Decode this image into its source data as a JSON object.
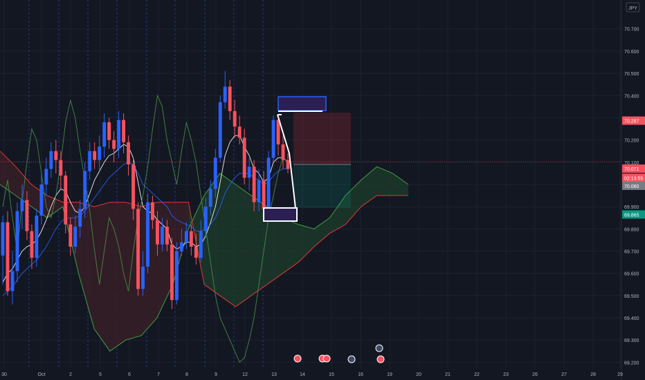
{
  "currency": "JPY",
  "colors": {
    "background": "#131722",
    "up": "#2962ff",
    "down": "#f7525f",
    "grid": "#1e2230",
    "axis_text": "#b2b5be",
    "cloud_bull": "#1d3b2c",
    "cloud_bear": "#3a1f27"
  },
  "chart_data": {
    "type": "candlestick",
    "title": "",
    "xlabel": "",
    "ylabel": "",
    "ylim": [
      69.17,
      70.78
    ],
    "y_ticks": [
      "70.700",
      "70.600",
      "70.500",
      "70.400",
      "70.300",
      "70.200",
      "70.100",
      "70.000",
      "69.900",
      "69.800",
      "69.700",
      "69.600",
      "69.500",
      "69.400",
      "69.300",
      "69.200"
    ],
    "x_ticks": [
      "30",
      "Oct",
      "2",
      "5",
      "6",
      "7",
      "8",
      "9",
      "12",
      "13",
      "14",
      "15",
      "16",
      "19",
      "20",
      "21",
      "22",
      "23",
      "26",
      "27",
      "28",
      "29"
    ],
    "price_labels": [
      {
        "text": "70.287",
        "price": 70.287,
        "color": "#f7525f"
      },
      {
        "text": "70.071",
        "price": 70.071,
        "color": "#f7525f"
      },
      {
        "text": "02:13:55",
        "price": 70.03,
        "color": "#f7525f"
      },
      {
        "text": "70.060",
        "price": 69.994,
        "color": "#787b86"
      },
      {
        "text": "69.865",
        "price": 69.865,
        "color": "#089981"
      }
    ],
    "candles": [
      [
        69.68,
        69.83,
        69.55,
        69.86
      ],
      [
        69.83,
        69.52,
        69.5,
        69.88
      ],
      [
        69.52,
        69.61,
        69.46,
        69.7
      ],
      [
        69.61,
        69.88,
        69.56,
        69.92
      ],
      [
        69.88,
        69.93,
        69.8,
        70.0
      ],
      [
        69.93,
        69.79,
        69.75,
        69.97
      ],
      [
        69.79,
        69.67,
        69.62,
        69.82
      ],
      [
        69.67,
        69.86,
        69.63,
        69.89
      ],
      [
        69.86,
        70.0,
        69.82,
        70.05
      ],
      [
        70.0,
        70.07,
        69.95,
        70.12
      ],
      [
        70.07,
        70.15,
        70.03,
        70.19
      ],
      [
        70.15,
        70.11,
        70.05,
        70.2
      ],
      [
        70.11,
        70.04,
        69.98,
        70.15
      ],
      [
        70.04,
        69.82,
        69.78,
        70.06
      ],
      [
        69.82,
        69.72,
        69.68,
        69.85
      ],
      [
        69.72,
        69.81,
        69.69,
        69.86
      ],
      [
        69.81,
        69.89,
        69.76,
        69.93
      ],
      [
        69.89,
        70.06,
        69.85,
        70.1
      ],
      [
        70.06,
        70.15,
        70.02,
        70.19
      ],
      [
        70.15,
        70.11,
        70.07,
        70.19
      ],
      [
        70.11,
        70.17,
        70.06,
        70.22
      ],
      [
        70.17,
        70.28,
        70.12,
        70.32
      ],
      [
        70.28,
        70.2,
        70.16,
        70.3
      ],
      [
        70.2,
        70.16,
        70.1,
        70.24
      ],
      [
        70.16,
        70.29,
        70.12,
        70.33
      ],
      [
        70.29,
        70.19,
        70.14,
        70.32
      ],
      [
        70.19,
        70.09,
        70.04,
        70.22
      ],
      [
        70.09,
        69.89,
        69.84,
        70.12
      ],
      [
        69.89,
        69.53,
        69.5,
        69.92
      ],
      [
        69.53,
        69.63,
        69.5,
        69.7
      ],
      [
        69.63,
        69.92,
        69.6,
        69.96
      ],
      [
        69.92,
        69.84,
        69.8,
        69.95
      ],
      [
        69.84,
        69.73,
        69.68,
        69.88
      ],
      [
        69.73,
        69.81,
        69.7,
        69.85
      ],
      [
        69.81,
        69.73,
        69.7,
        69.84
      ],
      [
        69.73,
        69.48,
        69.44,
        69.76
      ],
      [
        69.48,
        69.7,
        69.46,
        69.74
      ],
      [
        69.7,
        69.74,
        69.68,
        69.8
      ],
      [
        69.74,
        69.79,
        69.71,
        69.83
      ],
      [
        69.79,
        69.72,
        69.68,
        69.82
      ],
      [
        69.72,
        69.67,
        69.64,
        69.78
      ],
      [
        69.67,
        69.79,
        69.65,
        69.84
      ],
      [
        69.79,
        69.9,
        69.76,
        69.94
      ],
      [
        69.9,
        69.98,
        69.86,
        70.02
      ],
      [
        69.98,
        70.12,
        69.94,
        70.16
      ],
      [
        70.12,
        70.37,
        70.1,
        70.4
      ],
      [
        70.37,
        70.44,
        70.34,
        70.51
      ],
      [
        70.44,
        70.33,
        70.29,
        70.47
      ],
      [
        70.33,
        70.26,
        70.21,
        70.38
      ],
      [
        70.26,
        70.21,
        70.18,
        70.31
      ],
      [
        70.21,
        70.03,
        70.0,
        70.25
      ],
      [
        70.03,
        70.08,
        69.97,
        70.12
      ],
      [
        70.08,
        69.92,
        69.88,
        70.11
      ],
      [
        69.92,
        70.02,
        69.88,
        70.07
      ],
      [
        70.02,
        69.89,
        69.85,
        70.06
      ],
      [
        69.89,
        70.12,
        69.87,
        70.15
      ],
      [
        70.12,
        70.29,
        70.1,
        70.31
      ],
      [
        70.29,
        70.18,
        70.13,
        70.31
      ],
      [
        70.18,
        70.11,
        70.07,
        70.22
      ],
      [
        70.11,
        70.07,
        70.05,
        70.14
      ]
    ],
    "indicators": [
      {
        "kind": "ema_fast",
        "color": "#ffffff",
        "values": [
          69.56,
          69.6,
          69.62,
          69.66,
          69.7,
          69.72,
          69.73,
          69.75,
          69.79,
          69.84,
          69.9,
          69.95,
          69.98,
          69.97,
          69.92,
          69.88,
          69.87,
          69.9,
          69.96,
          70.02,
          70.06,
          70.1,
          70.13,
          70.14,
          70.16,
          70.18,
          70.17,
          70.12,
          70.01,
          69.9,
          69.88,
          69.87,
          69.84,
          69.82,
          69.8,
          69.73,
          69.71,
          69.72,
          69.74,
          69.74,
          69.72,
          69.73,
          69.77,
          69.83,
          69.9,
          70.01,
          70.13,
          70.19,
          70.22,
          70.22,
          70.17,
          70.13,
          70.07,
          70.05,
          70.01,
          70.03,
          70.1,
          70.12,
          70.12,
          70.1
        ]
      },
      {
        "kind": "ema_slow",
        "color": "#2962ff",
        "values": [
          69.5,
          69.52,
          69.54,
          69.57,
          69.6,
          69.62,
          69.64,
          69.66,
          69.69,
          69.72,
          69.76,
          69.8,
          69.83,
          69.85,
          69.85,
          69.85,
          69.86,
          69.88,
          69.91,
          69.94,
          69.97,
          70.0,
          70.03,
          70.05,
          70.07,
          70.09,
          70.1,
          70.09,
          70.05,
          70.0,
          69.98,
          69.96,
          69.94,
          69.92,
          69.9,
          69.86,
          69.84,
          69.83,
          69.82,
          69.81,
          69.79,
          69.79,
          69.8,
          69.82,
          69.85,
          69.9,
          69.96,
          70.0,
          70.03,
          70.05,
          70.05,
          70.05,
          70.03,
          70.02,
          70.0,
          70.01,
          70.04,
          70.06,
          70.07,
          70.07
        ]
      },
      {
        "kind": "lagging_span",
        "color": "#4a8f4a",
        "values": [
          69.9,
          70.02,
          69.85,
          69.7,
          69.92,
          70.1,
          70.25,
          70.2,
          70.05,
          69.9,
          69.85,
          69.95,
          70.1,
          70.28,
          70.38,
          70.3,
          70.15,
          70.02,
          69.88,
          69.7,
          69.55,
          69.7,
          69.85,
          69.8,
          69.72,
          69.6,
          69.52,
          69.7,
          69.85,
          69.95,
          70.08,
          70.25,
          70.4,
          70.35,
          70.2,
          70.1,
          70.0,
          70.15,
          70.28,
          70.2,
          70.1,
          69.95,
          69.8,
          69.65,
          69.5,
          69.4,
          69.35,
          69.3,
          69.25,
          69.2,
          69.22,
          69.3,
          69.4,
          69.55,
          69.7,
          69.85,
          69.95,
          70.05,
          70.12,
          70.1
        ]
      }
    ],
    "cloud": [
      {
        "a": 70.0,
        "b": 70.15
      },
      {
        "a": 69.95,
        "b": 70.08
      },
      {
        "a": 69.9,
        "b": 70.0
      },
      {
        "a": 69.85,
        "b": 69.95
      },
      {
        "a": 69.9,
        "b": 69.92
      },
      {
        "a": 69.6,
        "b": 69.92
      },
      {
        "a": 69.35,
        "b": 69.9
      },
      {
        "a": 69.25,
        "b": 69.92
      },
      {
        "a": 69.3,
        "b": 69.92
      },
      {
        "a": 69.32,
        "b": 69.9
      },
      {
        "a": 69.4,
        "b": 69.92
      },
      {
        "a": 69.55,
        "b": 69.92
      },
      {
        "a": 69.8,
        "b": 69.92
      },
      {
        "a": 69.95,
        "b": 69.55
      },
      {
        "a": 70.05,
        "b": 69.5
      },
      {
        "a": 70.0,
        "b": 69.45
      },
      {
        "a": 69.95,
        "b": 69.5
      },
      {
        "a": 69.9,
        "b": 69.55
      },
      {
        "a": 69.85,
        "b": 69.6
      },
      {
        "a": 69.82,
        "b": 69.65
      },
      {
        "a": 69.8,
        "b": 69.72
      },
      {
        "a": 69.85,
        "b": 69.78
      },
      {
        "a": 69.95,
        "b": 69.82
      },
      {
        "a": 70.02,
        "b": 69.9
      },
      {
        "a": 70.08,
        "b": 69.95
      },
      {
        "a": 70.05,
        "b": 69.95
      },
      {
        "a": 70.0,
        "b": 69.95
      }
    ]
  }
}
